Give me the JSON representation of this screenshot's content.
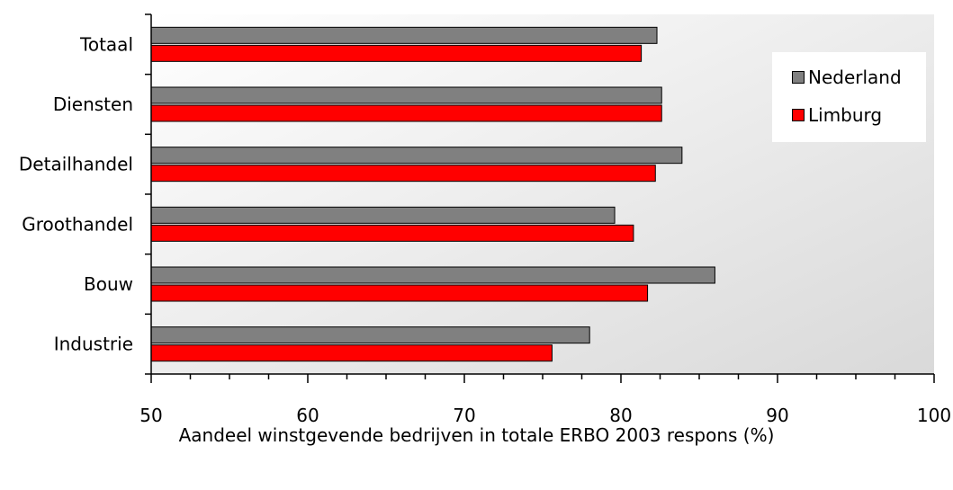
{
  "chart_data": {
    "type": "bar",
    "orientation": "horizontal",
    "categories": [
      "Totaal",
      "Diensten",
      "Detailhandel",
      "Groothandel",
      "Bouw",
      "Industrie"
    ],
    "series": [
      {
        "name": "Nederland",
        "color": "#808080",
        "values": [
          82.3,
          82.6,
          83.9,
          79.6,
          86.0,
          78.0
        ]
      },
      {
        "name": "Limburg",
        "color": "#ff0000",
        "values": [
          81.3,
          82.6,
          82.2,
          80.8,
          81.7,
          75.6
        ]
      }
    ],
    "xlabel": "Aandeel winstgevende bedrijven in totale ERBO 2003 respons (%)",
    "ylabel": "",
    "xlim": [
      50,
      100
    ],
    "xticks": [
      50,
      60,
      70,
      80,
      90,
      100
    ],
    "grid": false,
    "legend_position": "right"
  }
}
